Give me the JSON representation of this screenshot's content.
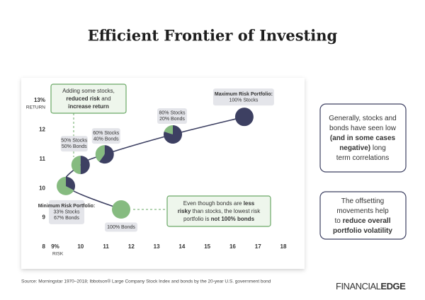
{
  "title": "Efficient Frontier of Investing",
  "chart_data": {
    "type": "scatter",
    "x_label": "RISK",
    "y_label": "RETURN",
    "xlim": [
      9,
      18
    ],
    "ylim": [
      8,
      13
    ],
    "xticks": [
      {
        "value": 9,
        "label": "9%"
      },
      10,
      11,
      12,
      13,
      14,
      15,
      16,
      17,
      18
    ],
    "yticks": [
      8,
      9,
      10,
      11,
      12,
      {
        "value": 13,
        "label": "13%"
      }
    ],
    "stock_color": "#3d4062",
    "bond_color": "#86bb80",
    "line_color": "#3d4062",
    "points": [
      {
        "x": 11.6,
        "y": 9.28,
        "stocks": 0,
        "bond_label": "100% Bonds"
      },
      {
        "x": 9.42,
        "y": 10.08,
        "stocks": 33,
        "name": "Minimum Risk Portfolio:",
        "stock_label": "33% Stocks",
        "bond_label": "67% Bonds"
      },
      {
        "x": 10.0,
        "y": 10.8,
        "stocks": 50,
        "stock_label": "50% Stocks",
        "bond_label": "50% Bonds"
      },
      {
        "x": 10.95,
        "y": 11.16,
        "stocks": 60,
        "stock_label": "60% Stocks",
        "bond_label": "40% Bonds"
      },
      {
        "x": 13.64,
        "y": 11.84,
        "stocks": 80,
        "stock_label": "80% Stocks",
        "bond_label": "20% Bonds"
      },
      {
        "x": 16.46,
        "y": 12.44,
        "stocks": 100,
        "name": "Maximum Risk Portfolio:",
        "stock_label": "100% Stocks"
      }
    ],
    "annotations": [
      [
        [
          {
            "text": "Adding some stocks,"
          }
        ],
        [
          {
            "text": "reduced risk",
            "bold": true
          },
          {
            "text": " and"
          }
        ],
        [
          {
            "text": "increase return",
            "bold": true
          }
        ]
      ],
      [
        [
          {
            "text": "Even though bonds are "
          },
          {
            "text": "less",
            "bold": true
          }
        ],
        [
          {
            "text": "risky",
            "bold": true
          },
          {
            "text": " than stocks, the lowest risk"
          }
        ],
        [
          {
            "text": "portfolio is "
          },
          {
            "text": "not 100% bonds",
            "bold": true
          }
        ]
      ]
    ]
  },
  "notes": [
    [
      [
        {
          "text": "Generally, stocks and"
        }
      ],
      [
        {
          "text": "bonds have seen low"
        }
      ],
      [
        {
          "text": "(and in some cases",
          "bold": true
        }
      ],
      [
        {
          "text": "negative)",
          "bold": true
        },
        {
          "text": " long"
        }
      ],
      [
        {
          "text": "term correlations"
        }
      ]
    ],
    [
      [
        {
          "text": "The offsetting"
        }
      ],
      [
        {
          "text": "movements help"
        }
      ],
      [
        {
          "text": "to "
        },
        {
          "text": "reduce overall",
          "bold": true
        }
      ],
      [
        {
          "text": "portfolio volatility",
          "bold": true
        }
      ]
    ]
  ],
  "source": "Source: Morningstar 1970–2018; Ibbotson® Large Company Stock Index and bonds by the 20-year U.S. government bond",
  "logo": {
    "light": "FINANCIAL",
    "bold": "EDGE"
  }
}
